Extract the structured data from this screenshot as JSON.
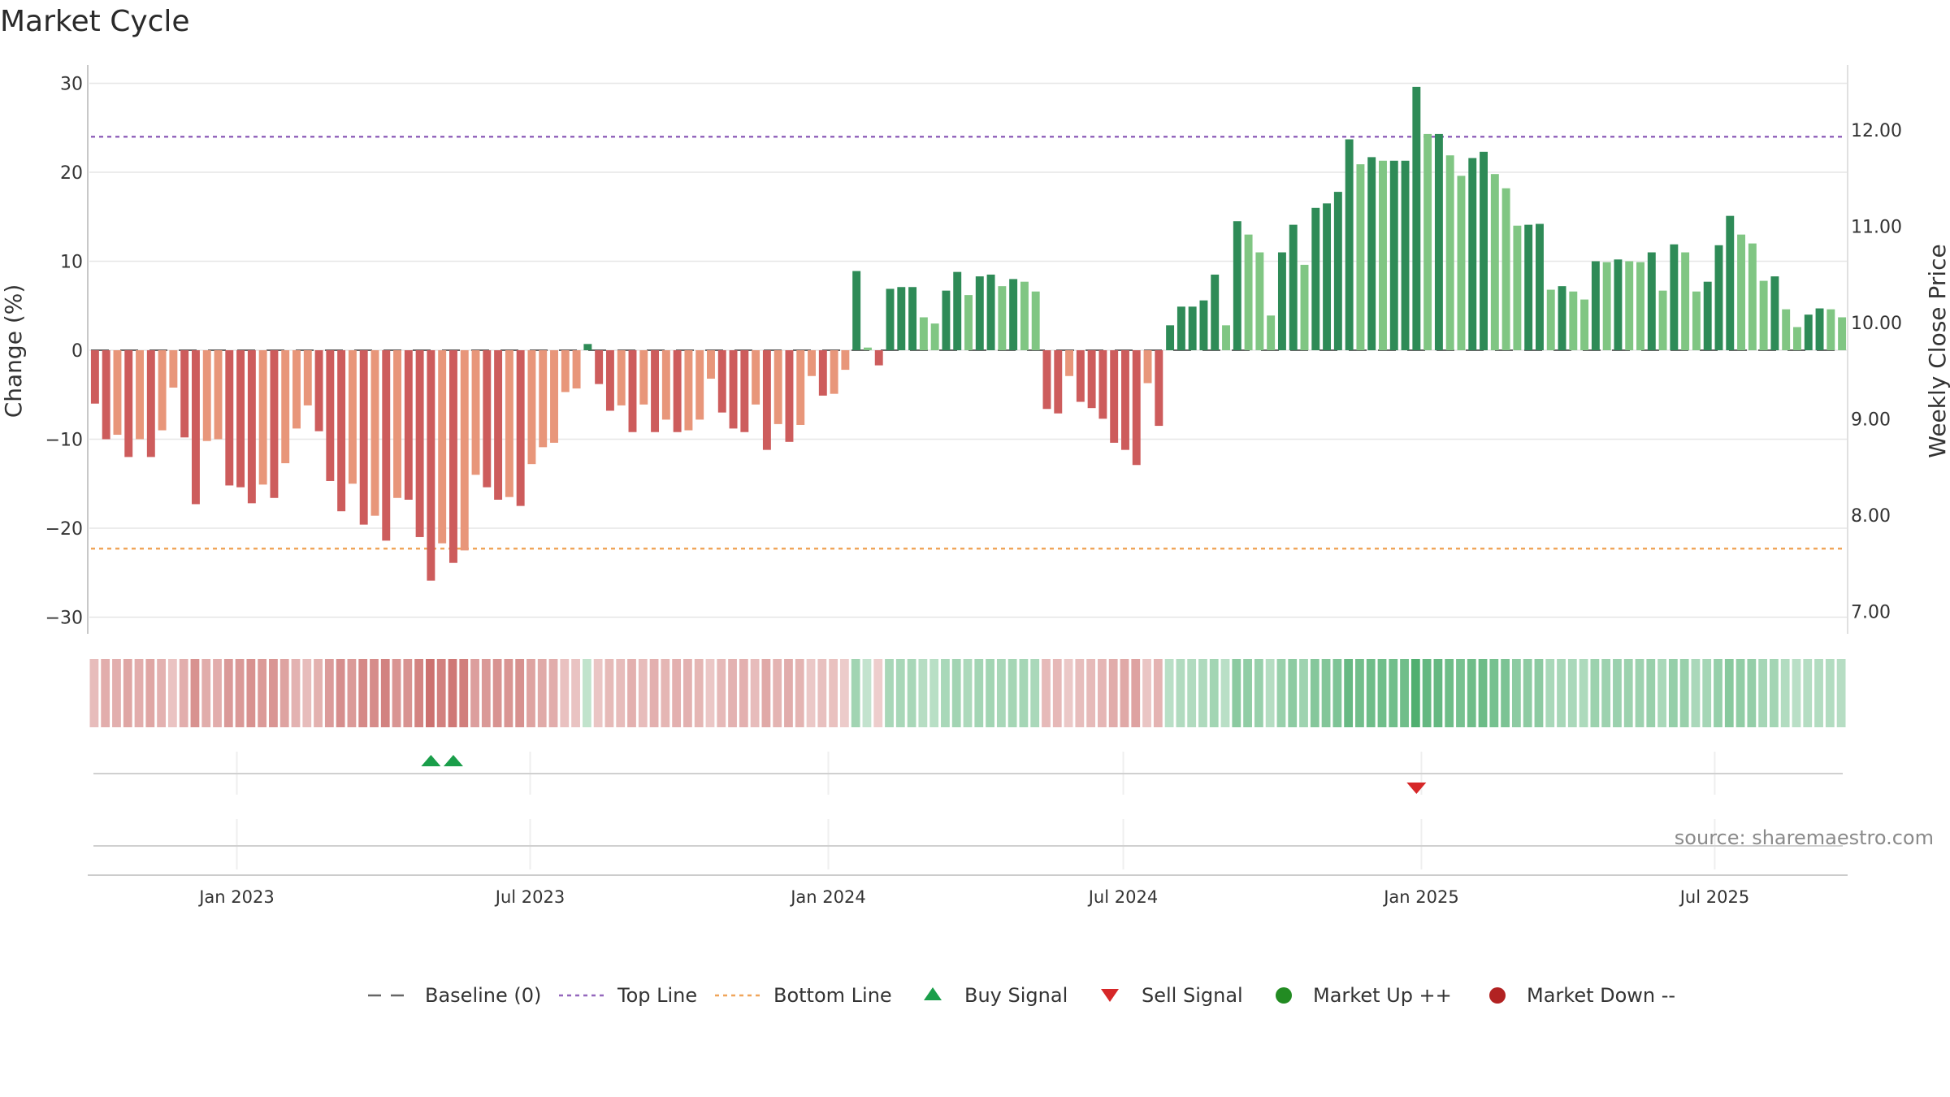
{
  "chart_data": {
    "type": "bar",
    "title": "Market Cycle",
    "ylabel_left": "Change (%)",
    "ylabel_right": "Weekly Close Price",
    "ylim": [
      -32,
      32
    ],
    "y_ticks": [
      30,
      20,
      10,
      0,
      -10,
      -20,
      -30
    ],
    "y_tick_labels": [
      "30",
      "20",
      "10",
      "0",
      "−10",
      "−20",
      "−30"
    ],
    "right_ylim": [
      6.79,
      12.7
    ],
    "right_ticks": [
      12,
      11,
      10,
      9,
      8,
      7
    ],
    "right_tick_labels": [
      "12.00",
      "11.00",
      "10.00",
      "9.00",
      "8.00",
      "7.00"
    ],
    "top_line": 24,
    "bottom_line": -22.3,
    "baseline": 0,
    "start_date": "2022-10-02",
    "end_date": "2025-09-21",
    "x_tick_dates": [
      "2023-01-01",
      "2023-07-01",
      "2024-01-01",
      "2024-07-01",
      "2025-01-01",
      "2025-07-01"
    ],
    "x_tick_labels": [
      "Jan 2023",
      "Jul 2023",
      "Jan 2024",
      "Jul 2024",
      "Jan 2025",
      "Jul 2025"
    ],
    "colors": {
      "down_strong": "#cd5c5c",
      "down_light": "#e8967a",
      "up_strong": "#2e8b57",
      "up_light": "#80c683",
      "top_line": "#9467bd",
      "bottom_line": "#f0a55a",
      "baseline": "#666666",
      "buy": "#1a9e4a",
      "sell": "#d62728",
      "market_up": "#228b22",
      "market_down": "#b22222",
      "grid": "#e6e6e6"
    },
    "series": [
      {
        "values": [
          -6,
          -10,
          -9.5,
          -12,
          -10,
          -12,
          -9,
          -4.2,
          -9.8,
          -17.3,
          -10.2,
          -10,
          -15.2,
          -15.4,
          -17.2,
          -15.1,
          -16.6,
          -12.7,
          -8.8,
          -6.2,
          -9.1,
          -14.7,
          -18.1,
          -15,
          -19.6,
          -18.6,
          -21.4,
          -16.6,
          -16.8,
          -21,
          -25.9,
          -21.7,
          -23.9,
          -22.5,
          -14,
          -15.4,
          -16.8,
          -16.5,
          -17.5,
          -12.8,
          -10.9,
          -10.4,
          -4.7,
          -4.3,
          0.7,
          -3.8,
          -6.8,
          -6.2,
          -9.2,
          -6.1,
          -9.2,
          -7.8,
          -9.2,
          -9,
          -7.8,
          -3.2,
          -7,
          -8.8,
          -9.2,
          -6.1,
          -11.2,
          -8.3,
          -10.3,
          -8.4,
          -2.9,
          -5.1,
          -4.9,
          -2.2,
          8.9,
          0.3,
          -1.7,
          6.9,
          7.1,
          7.1,
          3.7,
          3,
          6.7,
          8.8,
          6.2,
          8.3,
          8.5,
          7.2,
          8,
          7.7,
          6.6,
          -6.6,
          -7.1,
          -2.9,
          -5.8,
          -6.5,
          -7.7,
          -10.4,
          -11.2,
          -12.9,
          -3.7,
          -8.5,
          2.8,
          4.9,
          4.9,
          5.6,
          8.5,
          2.8,
          14.5,
          13,
          11,
          3.9,
          11,
          14.1,
          9.6,
          16,
          16.5,
          17.8,
          23.7,
          20.9,
          21.7,
          21.3,
          21.3,
          21.3,
          29.6,
          24.3,
          24.3,
          21.9,
          19.6,
          21.6,
          22.3,
          19.8,
          18.2,
          14,
          14.1,
          14.2,
          6.8,
          7.2,
          6.6,
          5.7,
          10,
          9.9,
          10.2,
          10,
          9.9,
          11,
          6.7,
          11.9,
          11,
          6.6,
          7.7,
          11.8,
          15.1,
          13,
          12,
          7.8,
          8.3,
          4.6,
          2.6,
          4,
          4.7,
          4.6,
          3.7
        ]
      }
    ],
    "buy_signals": [
      30,
      32
    ],
    "sell_signals": [
      118
    ],
    "legend": [
      {
        "label": "Baseline (0)",
        "style": "dash-baseline"
      },
      {
        "label": "Top Line",
        "style": "dot-top"
      },
      {
        "label": "Bottom Line",
        "style": "dot-bottom"
      },
      {
        "label": "Buy Signal",
        "style": "triangle-up"
      },
      {
        "label": "Sell Signal",
        "style": "triangle-down"
      },
      {
        "label": "Market Up ++",
        "style": "circle-up"
      },
      {
        "label": "Market Down --",
        "style": "circle-down"
      }
    ],
    "grid": true,
    "legend_position": "bottom-center",
    "source_text": "source: sharemaestro.com"
  }
}
